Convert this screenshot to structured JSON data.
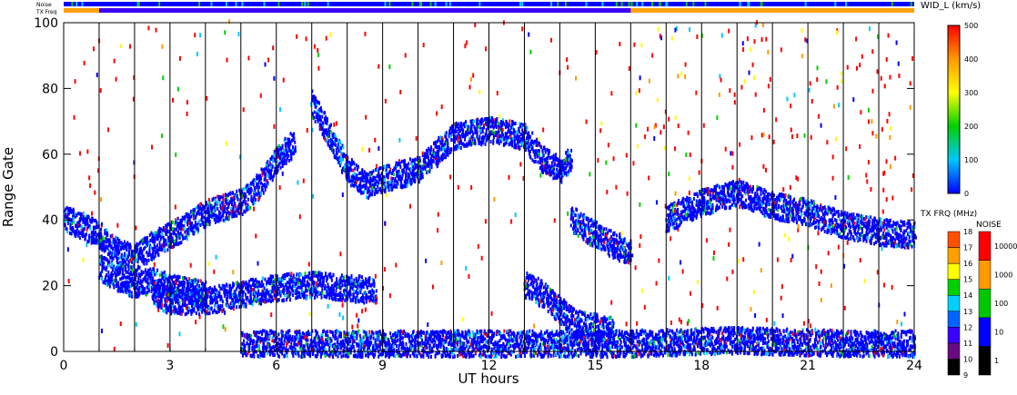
{
  "chart_data": {
    "type": "heatmap",
    "title": "",
    "xlabel": "UT hours",
    "ylabel": "Range Gate",
    "xlim": [
      0,
      24
    ],
    "ylim": [
      0,
      100
    ],
    "x_ticks": [
      0,
      3,
      6,
      9,
      12,
      15,
      18,
      21,
      24
    ],
    "y_ticks": [
      0,
      20,
      40,
      60,
      80,
      100
    ],
    "top_bars": {
      "noise_label": "Noise",
      "txfreq_label": "TX Freq"
    },
    "colorbar_main": {
      "title": "WID_L (km/s)",
      "range": [
        0,
        500
      ],
      "ticks": [
        0,
        100,
        200,
        300,
        400,
        500
      ],
      "colors": [
        "#0000ff",
        "#00c8ff",
        "#00d000",
        "#ffff00",
        "#ff9900",
        "#ff0000"
      ]
    },
    "colorbar_txfreq": {
      "title": "TX FRQ (MHz)",
      "levels": [
        "9",
        "10",
        "11",
        "12",
        "13",
        "14",
        "15",
        "16",
        "17",
        "18"
      ],
      "colors": [
        "#000000",
        "#6a0a80",
        "#3a00ff",
        "#0064ff",
        "#00d0ff",
        "#00d000",
        "#ffff00",
        "#ffa000",
        "#ff5000",
        "#ff0000"
      ]
    },
    "colorbar_noise": {
      "title": "NOISE",
      "labels": [
        "1",
        "10",
        "100",
        "1000",
        "10000"
      ],
      "colors": [
        "#000000",
        "#0000ff",
        "#00c800",
        "#ff9900",
        "#ff0000"
      ]
    },
    "series": [
      {
        "name": "",
        "points": [
          [
            0.0,
            40
          ],
          [
            0.5,
            38
          ],
          [
            1.0,
            35
          ],
          [
            1.5,
            30
          ],
          [
            2.0,
            28
          ],
          [
            2.5,
            32
          ],
          [
            3.0,
            35
          ],
          [
            3.5,
            38
          ],
          [
            4.0,
            42
          ]
        ]
      },
      {
        "name": "",
        "points": [
          [
            1.0,
            25
          ],
          [
            1.5,
            22
          ],
          [
            2.0,
            20
          ],
          [
            2.5,
            21
          ],
          [
            3.0,
            19
          ],
          [
            3.5,
            18
          ],
          [
            4.0,
            17
          ]
        ]
      },
      {
        "name": "",
        "points": [
          [
            2.5,
            17
          ],
          [
            3.0,
            15
          ],
          [
            4.0,
            15
          ],
          [
            5.0,
            17
          ],
          [
            6.0,
            19
          ],
          [
            7.0,
            20
          ],
          [
            8.0,
            19
          ],
          [
            8.8,
            18
          ]
        ]
      },
      {
        "name": "",
        "points": [
          [
            4.0,
            42
          ],
          [
            5.0,
            45
          ],
          [
            5.5,
            50
          ],
          [
            6.0,
            58
          ],
          [
            6.5,
            63
          ]
        ]
      },
      {
        "name": "",
        "points": [
          [
            7.0,
            75
          ],
          [
            7.5,
            65
          ],
          [
            8.0,
            55
          ],
          [
            8.5,
            50
          ],
          [
            9.0,
            52
          ],
          [
            10.0,
            55
          ],
          [
            10.5,
            60
          ],
          [
            11.0,
            65
          ],
          [
            12.0,
            67
          ],
          [
            13.0,
            65
          ],
          [
            13.5,
            58
          ],
          [
            14.0,
            55
          ],
          [
            14.3,
            58
          ]
        ]
      },
      {
        "name": "",
        "points": [
          [
            13.0,
            20
          ],
          [
            13.5,
            17
          ],
          [
            14.0,
            12
          ],
          [
            14.5,
            8
          ],
          [
            15.0,
            7
          ],
          [
            15.5,
            6
          ]
        ]
      },
      {
        "name": "",
        "points": [
          [
            14.3,
            40
          ],
          [
            15.0,
            35
          ],
          [
            15.5,
            32
          ],
          [
            16.0,
            30
          ]
        ]
      },
      {
        "name": "",
        "points": [
          [
            17.0,
            40
          ],
          [
            18.0,
            45
          ],
          [
            19.0,
            48
          ],
          [
            20.0,
            44
          ],
          [
            21.0,
            42
          ],
          [
            22.0,
            38
          ],
          [
            23.0,
            36
          ],
          [
            24.0,
            35
          ]
        ]
      },
      {
        "name": "",
        "points": [
          [
            5.0,
            2
          ],
          [
            8.0,
            2
          ],
          [
            11.0,
            2
          ],
          [
            14.0,
            2
          ],
          [
            16.0,
            2
          ],
          [
            19.0,
            3
          ],
          [
            22.0,
            2
          ],
          [
            24.0,
            2
          ]
        ]
      }
    ]
  }
}
